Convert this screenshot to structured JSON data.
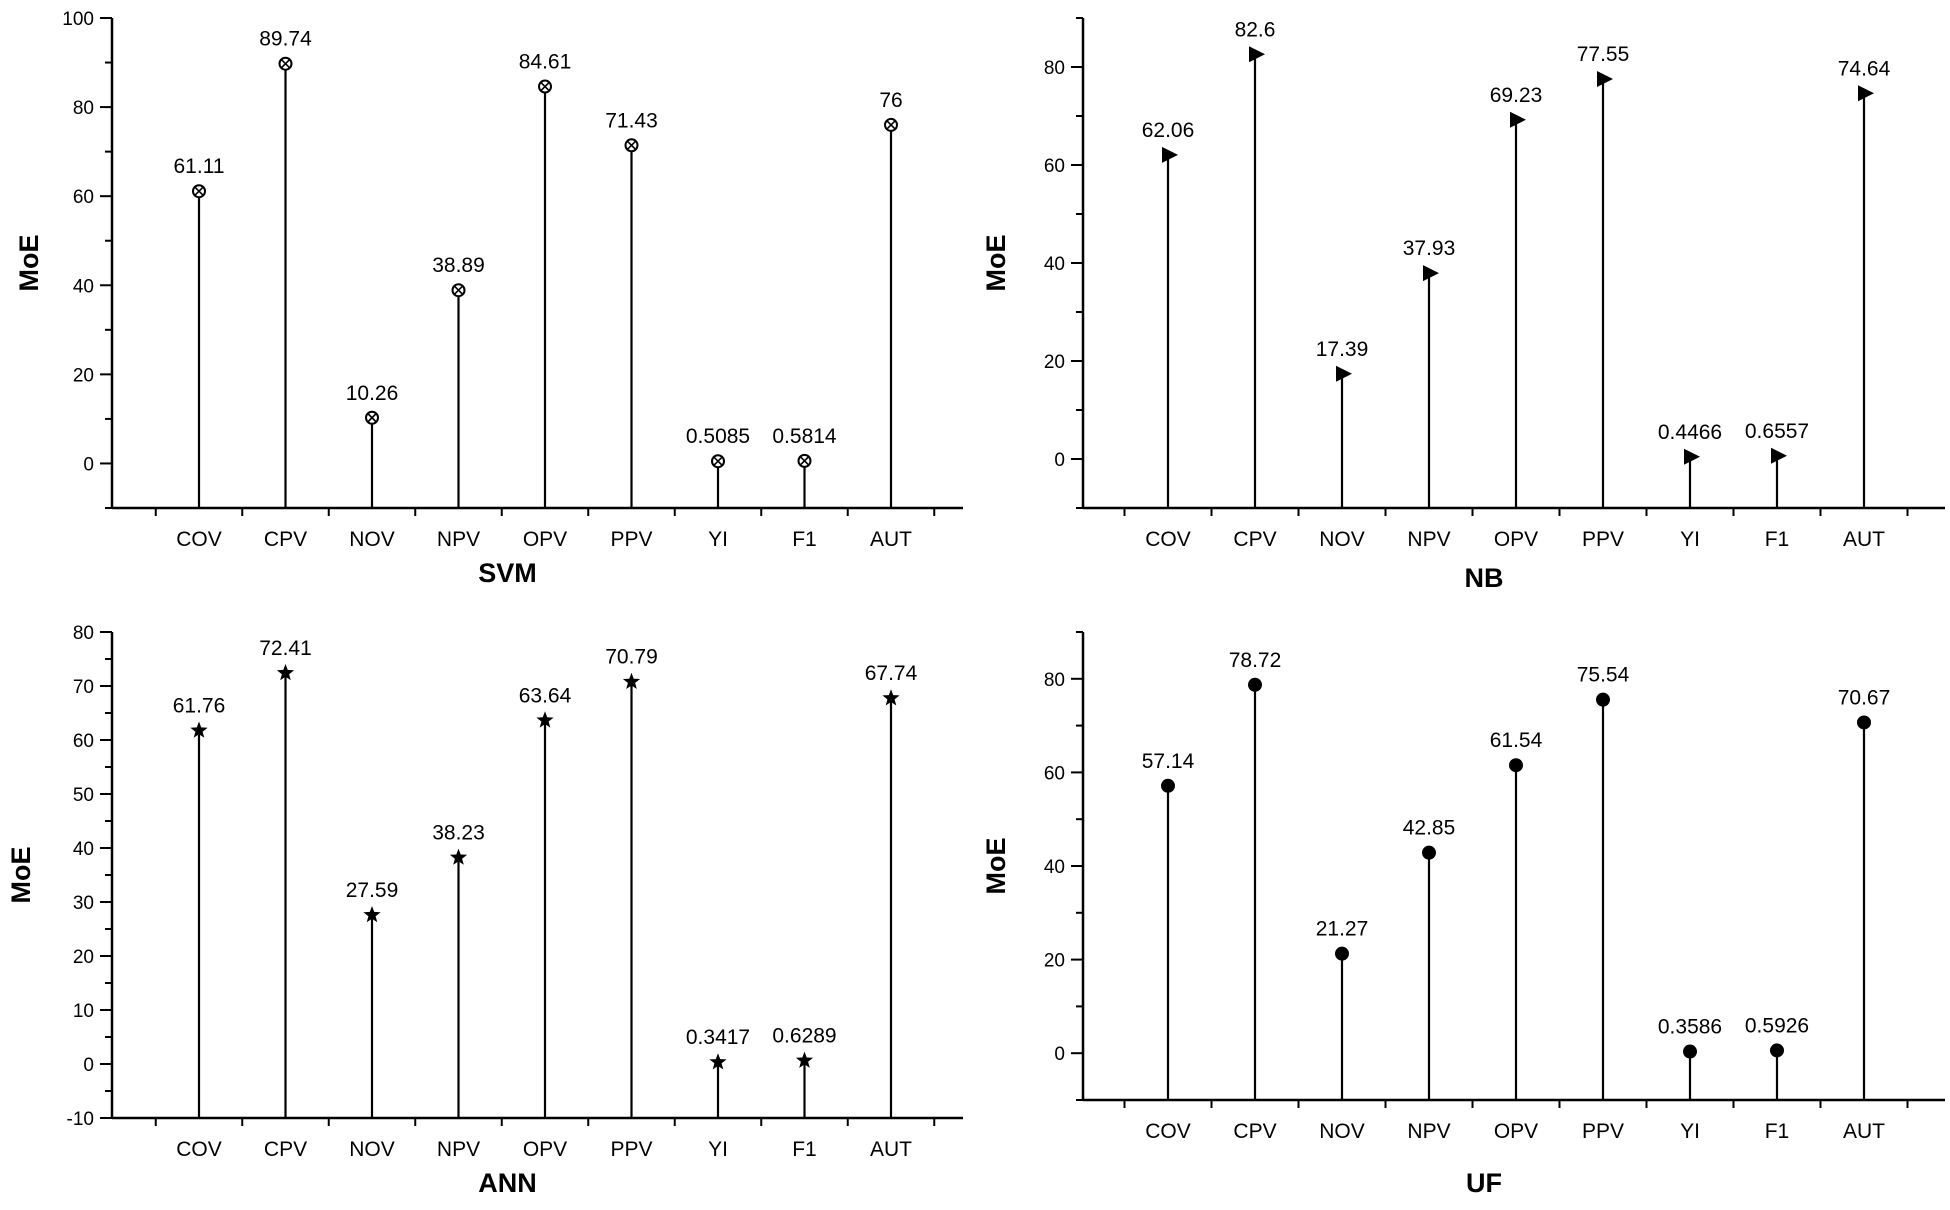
{
  "chart_data": [
    {
      "type": "stem",
      "title": "SVM",
      "ylabel": "MoE",
      "xlabel": "",
      "categories": [
        "COV",
        "CPV",
        "NOV",
        "NPV",
        "OPV",
        "PPV",
        "YI",
        "F1",
        "AUT"
      ],
      "values": [
        61.11,
        89.74,
        10.26,
        38.89,
        84.61,
        71.43,
        0.5085,
        0.5814,
        76
      ],
      "data_labels": [
        "61.11",
        "89.74",
        "10.26",
        "38.89",
        "84.61",
        "71.43",
        "0.5085",
        "0.5814",
        "76"
      ],
      "marker": "circle-cross",
      "ylim": [
        -10,
        100
      ],
      "yticks": [
        0,
        20,
        40,
        60,
        80,
        100
      ],
      "grid": false
    },
    {
      "type": "stem",
      "title": "NB",
      "ylabel": "MoE",
      "xlabel": "",
      "categories": [
        "COV",
        "CPV",
        "NOV",
        "NPV",
        "OPV",
        "PPV",
        "YI",
        "F1",
        "AUT"
      ],
      "values": [
        62.06,
        82.6,
        17.39,
        37.93,
        69.23,
        77.55,
        0.4466,
        0.6557,
        74.64
      ],
      "data_labels": [
        "62.06",
        "82.6",
        "17.39",
        "37.93",
        "69.23",
        "77.55",
        "0.4466",
        "0.6557",
        "74.64"
      ],
      "marker": "triangle-right",
      "ylim": [
        -10,
        90
      ],
      "yticks": [
        0,
        20,
        40,
        60,
        80
      ],
      "grid": false
    },
    {
      "type": "stem",
      "title": "ANN",
      "ylabel": "MoE",
      "xlabel": "",
      "categories": [
        "COV",
        "CPV",
        "NOV",
        "NPV",
        "OPV",
        "PPV",
        "YI",
        "F1",
        "AUT"
      ],
      "values": [
        61.76,
        72.41,
        27.59,
        38.23,
        63.64,
        70.79,
        0.3417,
        0.6289,
        67.74
      ],
      "data_labels": [
        "61.76",
        "72.41",
        "27.59",
        "38.23",
        "63.64",
        "70.79",
        "0.3417",
        "0.6289",
        "67.74"
      ],
      "marker": "star",
      "ylim": [
        -10,
        80
      ],
      "yticks": [
        -10,
        0,
        10,
        20,
        30,
        40,
        50,
        60,
        70,
        80
      ],
      "grid": false
    },
    {
      "type": "stem",
      "title": "UF",
      "ylabel": "MoE",
      "xlabel": "",
      "categories": [
        "COV",
        "CPV",
        "NOV",
        "NPV",
        "OPV",
        "PPV",
        "YI",
        "F1",
        "AUT"
      ],
      "values": [
        57.14,
        78.72,
        21.27,
        42.85,
        61.54,
        75.54,
        0.3586,
        0.5926,
        70.67
      ],
      "data_labels": [
        "57.14",
        "78.72",
        "21.27",
        "42.85",
        "61.54",
        "75.54",
        "0.3586",
        "0.5926",
        "70.67"
      ],
      "marker": "filled-circle",
      "ylim": [
        -10,
        90
      ],
      "yticks": [
        0,
        20,
        40,
        60,
        80
      ],
      "grid": false
    }
  ],
  "colors": {
    "stem": "#000000",
    "axis": "#000000",
    "background": "#ffffff"
  }
}
